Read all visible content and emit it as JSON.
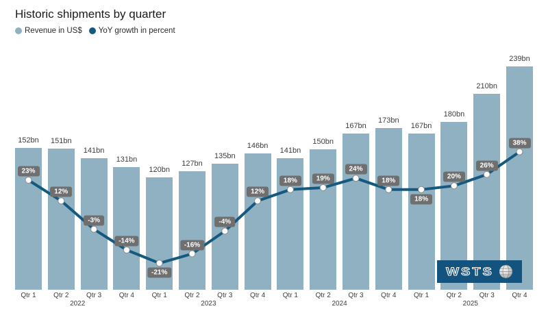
{
  "title": "Historic shipments by quarter",
  "legend": [
    {
      "label": "Revenue in US$",
      "color": "#8fb1c2"
    },
    {
      "label": "YoY growth in percent",
      "color": "#15597f"
    }
  ],
  "logo": {
    "text": "WSTS",
    "icon": "globe-icon",
    "bg_color": "#14537d"
  },
  "colors": {
    "background": "#ffffff",
    "bar": "#8fb1c2",
    "line": "#15597f",
    "point_fill": "#ffffff",
    "point_stroke": "#8a8a8a",
    "badge_bg": "#6f6f6f",
    "badge_text": "#ffffff",
    "label_text": "#3d3d3d"
  },
  "chart_data": {
    "type": "bar",
    "title": "Historic shipments by quarter",
    "quarters": [
      "Qtr 1",
      "Qtr 2",
      "Qtr 3",
      "Qtr 4"
    ],
    "years": [
      "2022",
      "2023",
      "2024",
      "2025"
    ],
    "series": [
      {
        "name": "Revenue in US$",
        "type": "bar",
        "unit": "bn",
        "values": [
          152,
          151,
          141,
          131,
          120,
          127,
          135,
          146,
          141,
          150,
          167,
          173,
          167,
          180,
          210,
          239
        ],
        "labels": [
          "152bn",
          "151bn",
          "141bn",
          "131bn",
          "120bn",
          "127bn",
          "135bn",
          "146bn",
          "141bn",
          "150bn",
          "167bn",
          "173bn",
          "167bn",
          "180bn",
          "210bn",
          "239bn"
        ]
      },
      {
        "name": "YoY growth in percent",
        "type": "line",
        "unit": "%",
        "values": [
          23,
          12,
          -3,
          -14,
          -21,
          -16,
          -4,
          12,
          18,
          19,
          24,
          18,
          18,
          20,
          26,
          38
        ],
        "labels": [
          "23%",
          "12%",
          "-3%",
          "-14%",
          "-21%",
          "-16%",
          "-4%",
          "12%",
          "18%",
          "19%",
          "24%",
          "18%",
          "18%",
          "20%",
          "26%",
          "38%"
        ],
        "label_below_indices": [
          4,
          12
        ]
      }
    ],
    "layout_hints": {
      "grid": false,
      "legend_position": "top-left",
      "bar_axis_range": [
        0,
        250
      ],
      "line_axis_range": [
        -30,
        45
      ]
    }
  }
}
